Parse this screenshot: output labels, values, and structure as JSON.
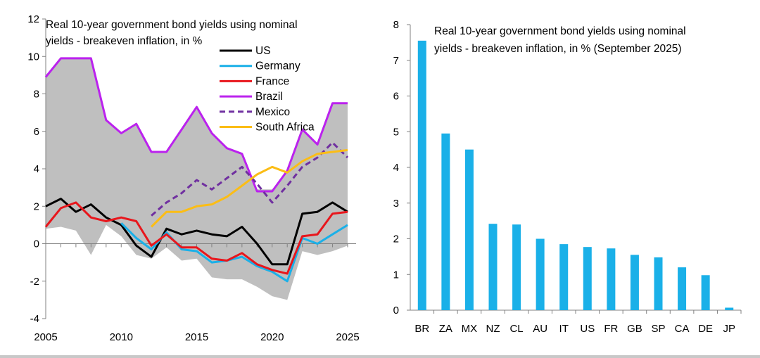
{
  "chart_data": [
    {
      "type": "line",
      "title_lines": [
        "Real 10-year government bond yields using nominal",
        "yields - breakeven inflation, in %"
      ],
      "xlim": [
        2005,
        2025
      ],
      "ylim": [
        -4,
        12
      ],
      "x_ticks": [
        "2005",
        "2010",
        "2015",
        "2020",
        "2025"
      ],
      "y_ticks": [
        "12",
        "10",
        "8",
        "6",
        "4",
        "2",
        "0",
        "-2",
        "-4"
      ],
      "legend_position": "top-right",
      "band": {
        "color": "#bfbfbf",
        "x": [
          2005,
          2006,
          2007,
          2008,
          2009,
          2010,
          2011,
          2012,
          2013,
          2014,
          2015,
          2016,
          2017,
          2018,
          2019,
          2020,
          2021,
          2022,
          2023,
          2024,
          2025
        ],
        "upper": [
          8.9,
          9.9,
          9.9,
          9.9,
          6.6,
          5.9,
          6.4,
          4.9,
          4.9,
          6.1,
          7.3,
          5.9,
          5.1,
          4.8,
          2.9,
          2.9,
          3.9,
          6.1,
          5.3,
          7.5,
          7.5
        ],
        "lower": [
          0.8,
          0.9,
          0.7,
          -0.6,
          1.0,
          0.4,
          -0.6,
          -0.8,
          -0.2,
          -0.9,
          -0.8,
          -1.8,
          -1.9,
          -1.9,
          -2.3,
          -2.8,
          -3.0,
          -0.4,
          -0.6,
          -0.4,
          -0.1
        ]
      },
      "series": [
        {
          "name": "US",
          "color": "#000000",
          "dash": false,
          "x": [
            2005,
            2006,
            2007,
            2008,
            2009,
            2010,
            2011,
            2012,
            2013,
            2014,
            2015,
            2016,
            2017,
            2018,
            2019,
            2020,
            2021,
            2022,
            2023,
            2024,
            2025
          ],
          "y": [
            2.0,
            2.4,
            1.7,
            2.1,
            1.4,
            1.0,
            -0.1,
            -0.7,
            0.8,
            0.5,
            0.7,
            0.5,
            0.4,
            0.9,
            0.0,
            -1.1,
            -1.1,
            1.6,
            1.7,
            2.2,
            1.7
          ]
        },
        {
          "name": "Germany",
          "color": "#1ab0e8",
          "dash": false,
          "x": [
            2010,
            2011,
            2012,
            2013,
            2014,
            2015,
            2016,
            2017,
            2018,
            2019,
            2020,
            2021,
            2022,
            2023,
            2024,
            2025
          ],
          "y": [
            1.1,
            0.3,
            -0.3,
            0.6,
            -0.3,
            -0.4,
            -1.0,
            -0.9,
            -0.7,
            -1.2,
            -1.5,
            -2.0,
            0.3,
            0.0,
            0.5,
            1.0
          ]
        },
        {
          "name": "France",
          "color": "#e8161c",
          "dash": false,
          "x": [
            2005,
            2006,
            2007,
            2008,
            2009,
            2010,
            2011,
            2012,
            2013,
            2014,
            2015,
            2016,
            2017,
            2018,
            2019,
            2020,
            2021,
            2022,
            2023,
            2024,
            2025
          ],
          "y": [
            0.9,
            1.9,
            2.2,
            1.4,
            1.2,
            1.4,
            1.2,
            -0.1,
            0.5,
            -0.2,
            -0.2,
            -0.8,
            -0.9,
            -0.5,
            -1.1,
            -1.4,
            -1.6,
            0.4,
            0.5,
            1.6,
            1.7
          ]
        },
        {
          "name": "Brazil",
          "color": "#bb22ee",
          "dash": false,
          "x": [
            2005,
            2006,
            2007,
            2008,
            2009,
            2010,
            2011,
            2012,
            2013,
            2014,
            2015,
            2016,
            2017,
            2018,
            2019,
            2020,
            2021,
            2022,
            2023,
            2024,
            2025
          ],
          "y": [
            8.9,
            9.9,
            9.9,
            9.9,
            6.6,
            5.9,
            6.4,
            4.9,
            4.9,
            6.1,
            7.3,
            5.9,
            5.1,
            4.8,
            2.8,
            2.8,
            3.9,
            6.1,
            5.3,
            7.5,
            7.5
          ]
        },
        {
          "name": "Mexico",
          "color": "#7030a0",
          "dash": true,
          "x": [
            2012,
            2013,
            2014,
            2015,
            2016,
            2017,
            2018,
            2019,
            2020,
            2021,
            2022,
            2023,
            2024,
            2025
          ],
          "y": [
            1.5,
            2.2,
            2.7,
            3.4,
            2.9,
            3.5,
            4.1,
            3.2,
            2.2,
            3.1,
            4.1,
            4.6,
            5.4,
            4.6
          ]
        },
        {
          "name": "South Africa",
          "color": "#fbbd16",
          "dash": false,
          "x": [
            2012,
            2013,
            2014,
            2015,
            2016,
            2017,
            2018,
            2019,
            2020,
            2021,
            2022,
            2023,
            2024,
            2025
          ],
          "y": [
            0.9,
            1.7,
            1.7,
            2.0,
            2.1,
            2.5,
            3.1,
            3.7,
            4.1,
            3.8,
            4.4,
            4.8,
            4.9,
            5.0
          ]
        }
      ]
    },
    {
      "type": "bar",
      "title_lines": [
        "Real 10-year government bond yields using nominal",
        "yields - breakeven inflation, in % (September 2025)"
      ],
      "categories": [
        "BR",
        "ZA",
        "MX",
        "NZ",
        "CL",
        "AU",
        "IT",
        "US",
        "FR",
        "GB",
        "SP",
        "CA",
        "DE",
        "JP"
      ],
      "values": [
        7.55,
        4.95,
        4.5,
        2.42,
        2.4,
        2.0,
        1.85,
        1.77,
        1.73,
        1.55,
        1.48,
        1.2,
        0.98,
        0.07
      ],
      "ylim": [
        0,
        8
      ],
      "y_ticks": [
        "8",
        "7",
        "6",
        "5",
        "4",
        "3",
        "2",
        "1",
        "0"
      ],
      "bar_color": "#1ab0e8"
    }
  ]
}
